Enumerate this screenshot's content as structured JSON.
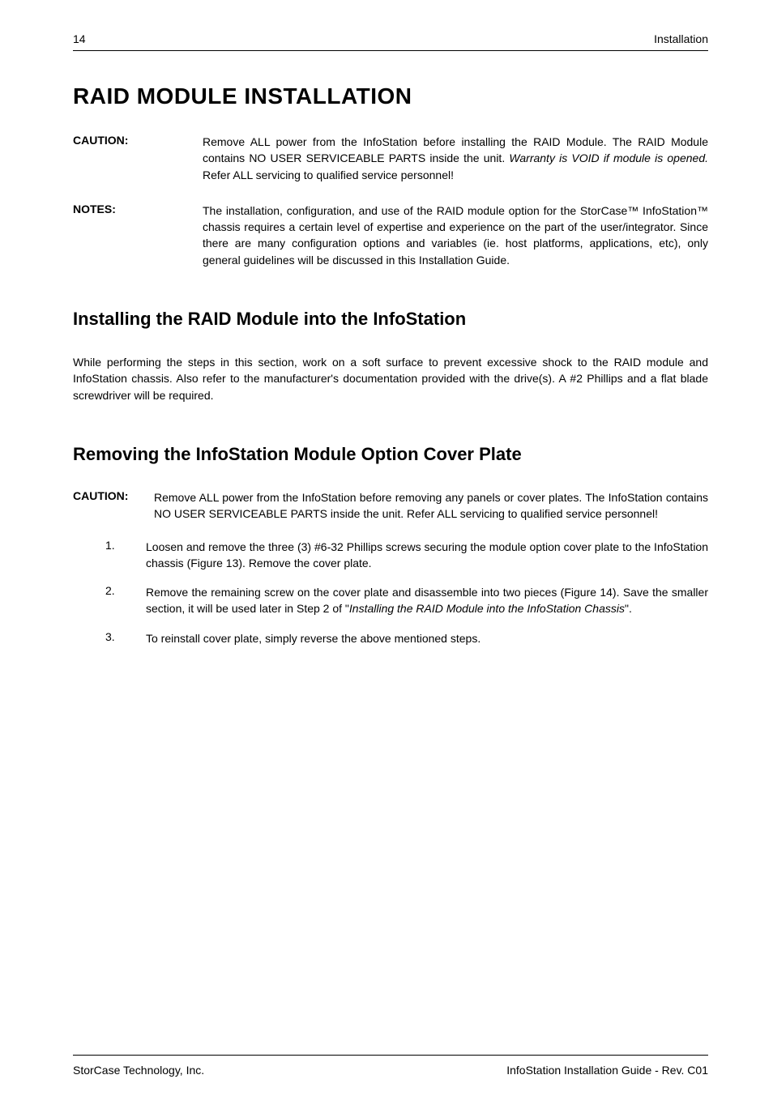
{
  "header": {
    "page_number": "14",
    "section": "Installation"
  },
  "title": "RAID  MODULE  INSTALLATION",
  "caution": {
    "label": "CAUTION:",
    "text_before": "Remove ALL power from the InfoStation before installing the RAID Module. The RAID Module contains NO USER SERVICEABLE PARTS inside the unit. ",
    "text_italic": "Warranty is VOID if module is opened.",
    "text_after": " Refer ALL servicing to qualified service personnel!"
  },
  "notes": {
    "label": "NOTES:",
    "text": "The installation, configuration, and use of the RAID module option for the StorCase™ InfoStation™ chassis requires a certain level of expertise and experience on the part of the user/integrator. Since there are many configuration options and variables (ie. host platforms, applications, etc), only general guidelines will be discussed in this Installation Guide."
  },
  "section1": {
    "heading": "Installing the RAID Module into the InfoStation",
    "para": "While performing the steps in this section, work on a soft surface to prevent excessive shock to the RAID module and InfoStation chassis. Also refer to the manufacturer's documentation provided with the drive(s). A #2 Phillips and a flat blade screwdriver will be required."
  },
  "section2": {
    "heading": "Removing the InfoStation Module Option Cover Plate",
    "caution_label": "CAUTION:",
    "caution_text": "Remove ALL power from the InfoStation before removing any panels or cover plates. The InfoStation contains NO USER SERVICEABLE PARTS inside the unit. Refer ALL servicing to qualified service personnel!",
    "items": [
      {
        "num": "1.",
        "text": "Loosen and remove the three (3) #6-32 Phillips screws securing the module option cover plate to the InfoStation chassis (Figure 13). Remove the cover plate."
      },
      {
        "num": "2.",
        "text_before": "Remove the remaining screw on the cover plate and disassemble into two pieces (Figure 14). Save the smaller section, it will be used later in Step 2 of \"",
        "text_italic": "Installing the RAID Module into the InfoStation Chassis",
        "text_after": "\"."
      },
      {
        "num": "3.",
        "text": "To reinstall cover plate, simply reverse the above mentioned steps."
      }
    ]
  },
  "footer": {
    "left": "StorCase Technology, Inc.",
    "right": "InfoStation Installation Guide - Rev. C01"
  }
}
